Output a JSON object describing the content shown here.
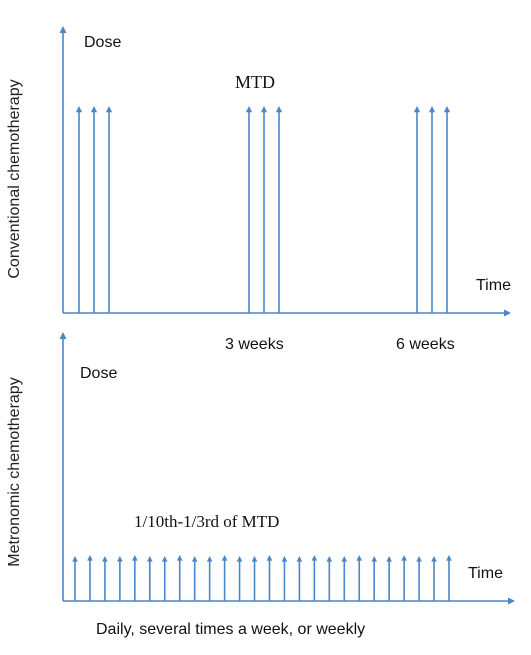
{
  "colors": {
    "axis": "#4a86c8",
    "arrow": "#4a86c8",
    "text": "#111111"
  },
  "top_panel": {
    "side_label": "Conventional chemotherapy",
    "y_axis_label": "Dose",
    "x_axis_label": "Time",
    "peak_label": "MTD",
    "tick_labels": [
      "3 weeks",
      "6 weeks"
    ],
    "dose_groups": 3,
    "doses_per_group": 3
  },
  "bottom_panel": {
    "side_label": "Metronomic chemotherapy",
    "y_axis_label": "Dose",
    "x_axis_label": "Time",
    "dose_label": "1/10th-1/3rd of MTD",
    "caption": "Daily, several times a week, or weekly",
    "dose_count": 26
  }
}
